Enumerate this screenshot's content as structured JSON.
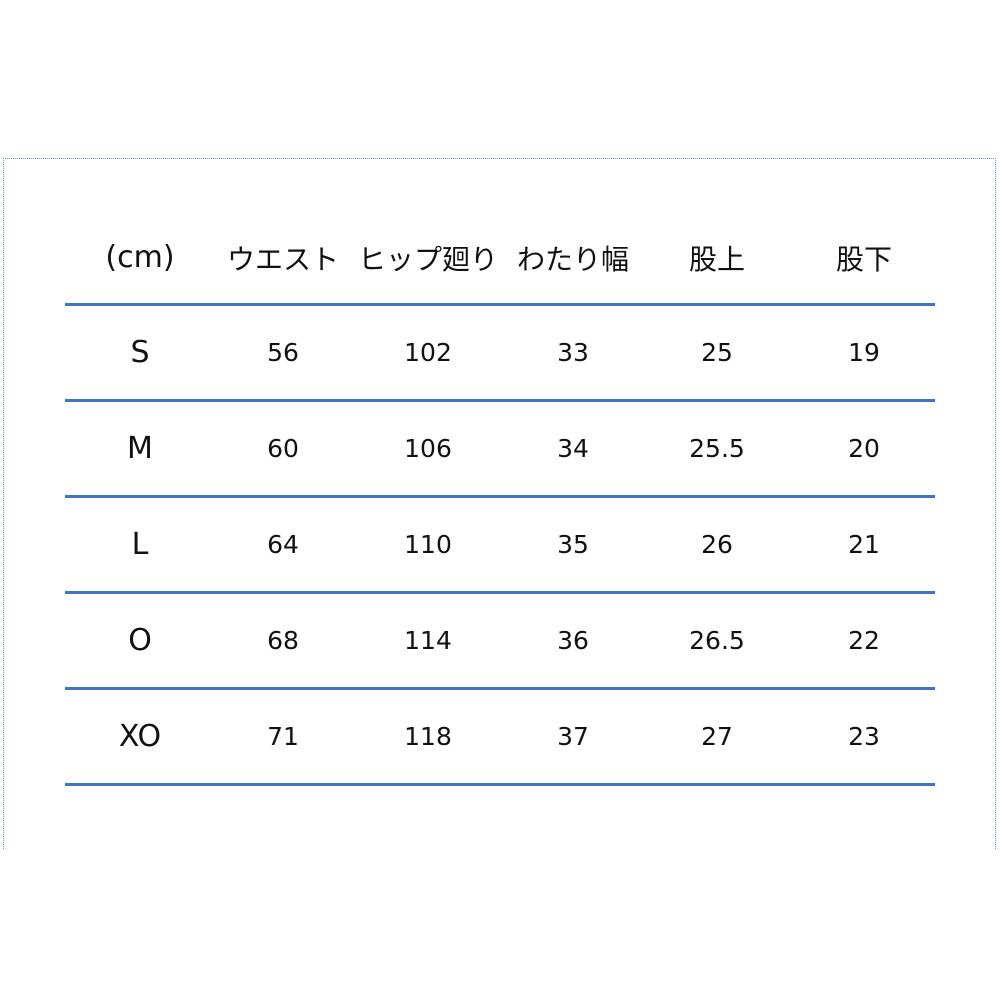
{
  "table": {
    "headers": [
      "(cm)",
      "ウエスト",
      "ヒップ廻り",
      "わたり幅",
      "股上",
      "股下"
    ],
    "rows": [
      [
        "S",
        "56",
        "102",
        "33",
        "25",
        "19"
      ],
      [
        "M",
        "60",
        "106",
        "34",
        "25.5",
        "20"
      ],
      [
        "L",
        "64",
        "110",
        "35",
        "26",
        "21"
      ],
      [
        "O",
        "68",
        "114",
        "36",
        "26.5",
        "22"
      ],
      [
        "XO",
        "71",
        "118",
        "37",
        "27",
        "23"
      ]
    ]
  },
  "colors": {
    "rule": "#4472c4",
    "frame": "#6d8fd0"
  }
}
